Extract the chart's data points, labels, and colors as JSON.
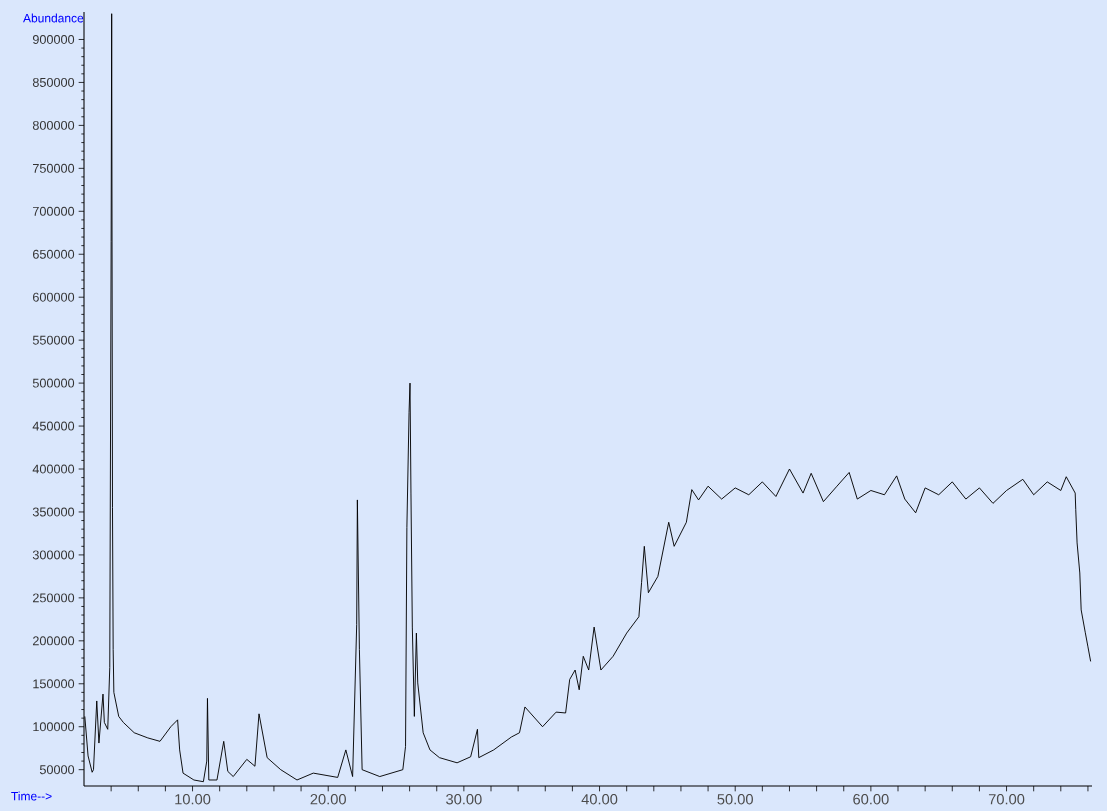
{
  "chart_data": {
    "type": "line",
    "xlabel": "Time-->",
    "ylabel": "Abundance",
    "x": [
      2.06,
      2.3,
      2.6,
      2.7,
      2.94,
      3.1,
      3.4,
      3.5,
      3.75,
      3.9,
      4.0,
      4.04,
      4.1,
      4.15,
      4.2,
      4.56,
      4.9,
      5.7,
      6.7,
      7.6,
      8.4,
      8.9,
      9.05,
      9.3,
      10.1,
      10.8,
      11.05,
      11.1,
      11.2,
      11.8,
      12.3,
      12.6,
      13.0,
      14.0,
      14.6,
      14.9,
      15.5,
      16.5,
      17.7,
      18.9,
      20.7,
      21.3,
      21.8,
      22.1,
      22.15,
      22.3,
      22.5,
      23.8,
      25.5,
      25.7,
      25.8,
      25.96,
      26.03,
      26.1,
      26.2,
      26.35,
      26.5,
      26.6,
      27.0,
      27.5,
      28.2,
      29.5,
      30.5,
      31.0,
      31.1,
      32.2,
      33.5,
      34.1,
      34.5,
      35.8,
      36.8,
      37.5,
      37.8,
      38.2,
      38.5,
      38.8,
      39.2,
      39.6,
      40.1,
      41.0,
      42.0,
      42.9,
      43.1,
      43.3,
      43.6,
      44.3,
      45.1,
      45.5,
      46.4,
      46.8,
      47.3,
      48,
      49,
      50,
      51,
      52,
      53,
      54,
      55,
      55.6,
      56.5,
      57.5,
      58.4,
      59,
      60,
      61,
      61.9,
      62.5,
      63.3,
      64,
      65,
      66,
      67,
      68,
      69,
      70,
      71.2,
      72,
      73,
      74,
      74.4,
      75.06,
      75.1,
      75.2,
      75.4,
      75.5,
      75.8,
      76.0,
      76.2
    ],
    "series": [
      {
        "color": "#000000",
        "values": [
          112000,
          66000,
          47000,
          50000,
          130000,
          81000,
          138000,
          105000,
          97000,
          169000,
          665000,
          930000,
          355000,
          190000,
          140000,
          112000,
          105000,
          93000,
          87000,
          83000,
          100000,
          108000,
          73000,
          46000,
          38000,
          36000,
          60000,
          133000,
          38000,
          38000,
          83000,
          48000,
          42000,
          62000,
          54000,
          115000,
          64000,
          50000,
          38000,
          46000,
          41000,
          73000,
          42000,
          219000,
          364000,
          190000,
          50000,
          42000,
          50000,
          77000,
          332000,
          466000,
          500000,
          372000,
          216000,
          112000,
          209000,
          151000,
          93000,
          73000,
          64000,
          58000,
          65000,
          97000,
          64000,
          73000,
          88000,
          93000,
          123000,
          100000,
          117000,
          116000,
          155000,
          166000,
          143000,
          182000,
          166000,
          216000,
          166000,
          182000,
          209000,
          228000,
          268000,
          310000,
          256000,
          275000,
          338000,
          310000,
          338000,
          376000,
          364000,
          380000,
          365000,
          378000,
          370000,
          385000,
          368000,
          400000,
          372000,
          395000,
          362000,
          380000,
          396000,
          365000,
          375000,
          370000,
          392000,
          365000,
          349000,
          378000,
          370000,
          385000,
          365000,
          378000,
          360000,
          375000,
          388000,
          370000,
          385000,
          375000,
          391000,
          372000,
          353000,
          314000,
          279000,
          236000,
          210000,
          193000,
          176000
        ]
      }
    ],
    "xlim": [
      2.0,
      76.3
    ],
    "ylim": [
      31000,
      932000
    ],
    "xticks": [
      {
        "value": 4,
        "label": null
      },
      {
        "value": 6,
        "label": null
      },
      {
        "value": 8,
        "label": null
      },
      {
        "value": 10,
        "label": "10.00"
      },
      {
        "value": 12,
        "label": null
      },
      {
        "value": 14,
        "label": null
      },
      {
        "value": 16,
        "label": null
      },
      {
        "value": 18,
        "label": null
      },
      {
        "value": 20,
        "label": "20.00"
      },
      {
        "value": 22,
        "label": null
      },
      {
        "value": 24,
        "label": null
      },
      {
        "value": 26,
        "label": null
      },
      {
        "value": 28,
        "label": null
      },
      {
        "value": 30,
        "label": "30.00"
      },
      {
        "value": 32,
        "label": null
      },
      {
        "value": 34,
        "label": null
      },
      {
        "value": 36,
        "label": null
      },
      {
        "value": 38,
        "label": null
      },
      {
        "value": 40,
        "label": "40.00"
      },
      {
        "value": 42,
        "label": null
      },
      {
        "value": 44,
        "label": null
      },
      {
        "value": 46,
        "label": null
      },
      {
        "value": 48,
        "label": null
      },
      {
        "value": 50,
        "label": "50.00"
      },
      {
        "value": 52,
        "label": null
      },
      {
        "value": 54,
        "label": null
      },
      {
        "value": 56,
        "label": null
      },
      {
        "value": 58,
        "label": null
      },
      {
        "value": 60,
        "label": "60.00"
      },
      {
        "value": 62,
        "label": null
      },
      {
        "value": 64,
        "label": null
      },
      {
        "value": 66,
        "label": null
      },
      {
        "value": 68,
        "label": null
      },
      {
        "value": 70,
        "label": "70.00"
      },
      {
        "value": 72,
        "label": null
      },
      {
        "value": 74,
        "label": null
      },
      {
        "value": 76,
        "label": null
      }
    ],
    "yticks": [
      50000,
      100000,
      150000,
      200000,
      250000,
      300000,
      350000,
      400000,
      450000,
      500000,
      550000,
      600000,
      650000,
      700000,
      750000,
      800000,
      850000,
      900000
    ]
  }
}
